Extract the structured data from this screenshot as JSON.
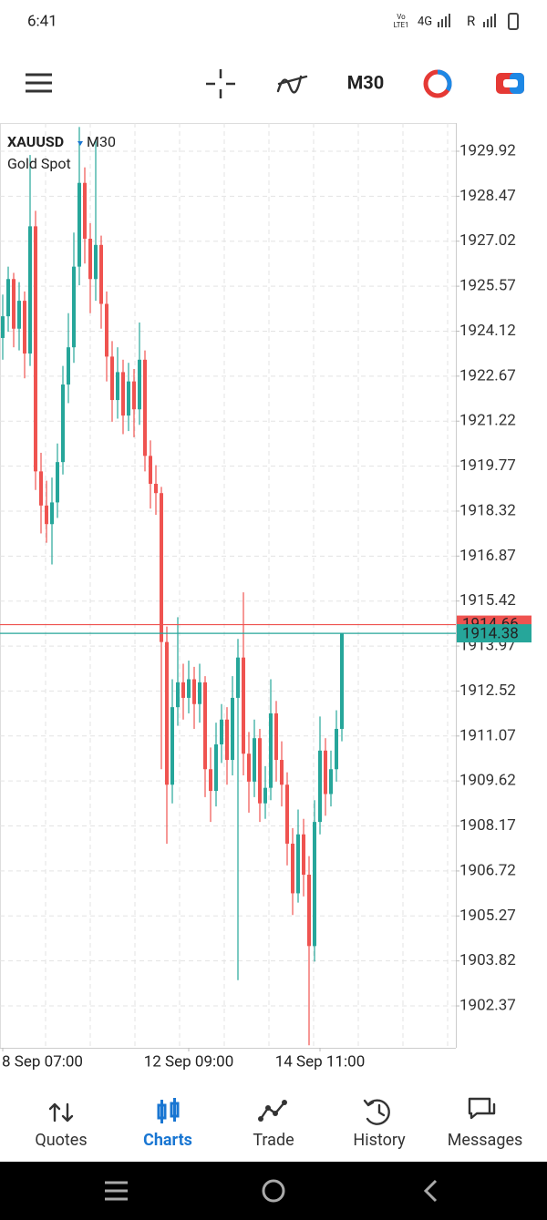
{
  "status_bar": {
    "time": "6:41",
    "volte_top": "Vo",
    "volte_bottom": "LTE1",
    "network": "4G",
    "roaming": "R"
  },
  "chart_data": {
    "type": "candlestick",
    "symbol": "XAUUSD",
    "timeframe": "M30",
    "description": "Gold Spot",
    "up_color": "#26a69a",
    "down_color": "#ef5350",
    "grid": true,
    "ylim": [
      1901.02,
      1930.83
    ],
    "yticks": [
      1929.92,
      1928.47,
      1927.02,
      1925.57,
      1924.12,
      1922.67,
      1921.22,
      1919.77,
      1918.32,
      1916.87,
      1915.42,
      1913.97,
      1912.52,
      1911.07,
      1909.62,
      1908.17,
      1906.72,
      1905.27,
      1903.82,
      1902.37
    ],
    "xticks": [
      {
        "value": 0,
        "label": "8 Sep 07:00"
      },
      {
        "value": 34,
        "label": "12 Sep 09:00"
      },
      {
        "value": 58,
        "label": "14 Sep 11:00"
      }
    ],
    "ask": 1914.66,
    "bid": 1914.38,
    "ask_color": "#ef5350",
    "bid_color": "#26a69a",
    "open": [
      1923.9,
      1924.6,
      1925.8,
      1924.2,
      1925.1,
      1923.4,
      1927.5,
      1919.6,
      1918.5,
      1917.9,
      1918.6,
      1919.9,
      1922.4,
      1923.6,
      1926.2,
      1928.9,
      1927.1,
      1925.8,
      1926.9,
      1925.0,
      1923.3,
      1921.9,
      1922.8,
      1921.4,
      1922.5,
      1921.6,
      1923.2,
      1920.1,
      1919.2,
      1918.9,
      1914.1,
      1909.5,
      1912.0,
      1912.8,
      1912.3,
      1912.9,
      1912.1,
      1912.8,
      1910.0,
      1909.3,
      1910.8,
      1911.6,
      1910.3,
      1912.3,
      1913.6,
      1910.5,
      1909.6,
      1911.0,
      1908.9,
      1909.4,
      1911.8,
      1910.3,
      1909.5,
      1907.6,
      1906.0,
      1907.9,
      1906.6,
      1904.3,
      1908.3,
      1910.6,
      1909.2,
      1910.0,
      1911.3
    ],
    "high": [
      1925.3,
      1926.2,
      1926.0,
      1925.7,
      1925.4,
      1929.8,
      1928.0,
      1920.2,
      1919.3,
      1919.4,
      1920.5,
      1923.0,
      1924.7,
      1927.3,
      1930.7,
      1929.4,
      1927.6,
      1930.3,
      1927.2,
      1925.4,
      1923.8,
      1923.6,
      1923.2,
      1923.1,
      1922.9,
      1924.4,
      1923.5,
      1920.6,
      1919.8,
      1919.1,
      1914.6,
      1912.9,
      1914.9,
      1913.4,
      1913.5,
      1913.3,
      1913.4,
      1913.0,
      1910.7,
      1911.5,
      1912.1,
      1912.0,
      1913.0,
      1914.2,
      1915.7,
      1911.2,
      1911.6,
      1911.3,
      1910.1,
      1912.9,
      1912.2,
      1910.9,
      1909.9,
      1908.1,
      1908.7,
      1908.4,
      1907.2,
      1909.0,
      1911.7,
      1911.0,
      1910.6,
      1911.9,
      1914.38
    ],
    "low": [
      1923.2,
      1924.1,
      1923.6,
      1923.5,
      1922.6,
      1923.0,
      1919.0,
      1917.6,
      1917.3,
      1916.6,
      1918.1,
      1919.5,
      1921.8,
      1923.1,
      1925.6,
      1926.3,
      1924.7,
      1925.1,
      1924.2,
      1922.5,
      1921.2,
      1921.3,
      1920.8,
      1920.9,
      1920.7,
      1921.1,
      1919.6,
      1918.4,
      1918.2,
      1910.0,
      1907.6,
      1908.9,
      1911.4,
      1911.6,
      1911.8,
      1911.3,
      1911.5,
      1909.1,
      1908.3,
      1908.8,
      1910.2,
      1909.5,
      1909.8,
      1903.2,
      1909.8,
      1908.6,
      1909.1,
      1908.3,
      1908.4,
      1909.0,
      1909.6,
      1908.8,
      1906.9,
      1905.3,
      1905.7,
      1905.9,
      1901.1,
      1903.8,
      1907.9,
      1908.5,
      1908.8,
      1909.6,
      1910.9
    ],
    "close": [
      1924.6,
      1925.8,
      1924.2,
      1925.1,
      1923.4,
      1927.5,
      1919.6,
      1918.5,
      1917.9,
      1918.6,
      1919.9,
      1922.4,
      1923.6,
      1926.2,
      1928.9,
      1927.1,
      1925.8,
      1926.9,
      1925.0,
      1923.3,
      1921.9,
      1922.8,
      1921.4,
      1922.5,
      1921.6,
      1923.2,
      1920.1,
      1919.2,
      1918.9,
      1914.1,
      1909.5,
      1912.0,
      1912.8,
      1912.3,
      1912.9,
      1912.1,
      1912.8,
      1910.0,
      1909.3,
      1910.8,
      1911.6,
      1910.3,
      1912.3,
      1913.6,
      1910.5,
      1909.6,
      1911.0,
      1908.9,
      1909.4,
      1911.8,
      1910.3,
      1909.5,
      1907.6,
      1906.0,
      1907.9,
      1906.6,
      1904.3,
      1908.3,
      1910.6,
      1909.2,
      1910.0,
      1911.3,
      1914.38
    ]
  },
  "nav": {
    "items": [
      {
        "label": "Quotes"
      },
      {
        "label": "Charts"
      },
      {
        "label": "Trade"
      },
      {
        "label": "History"
      },
      {
        "label": "Messages"
      }
    ],
    "active": 1
  }
}
